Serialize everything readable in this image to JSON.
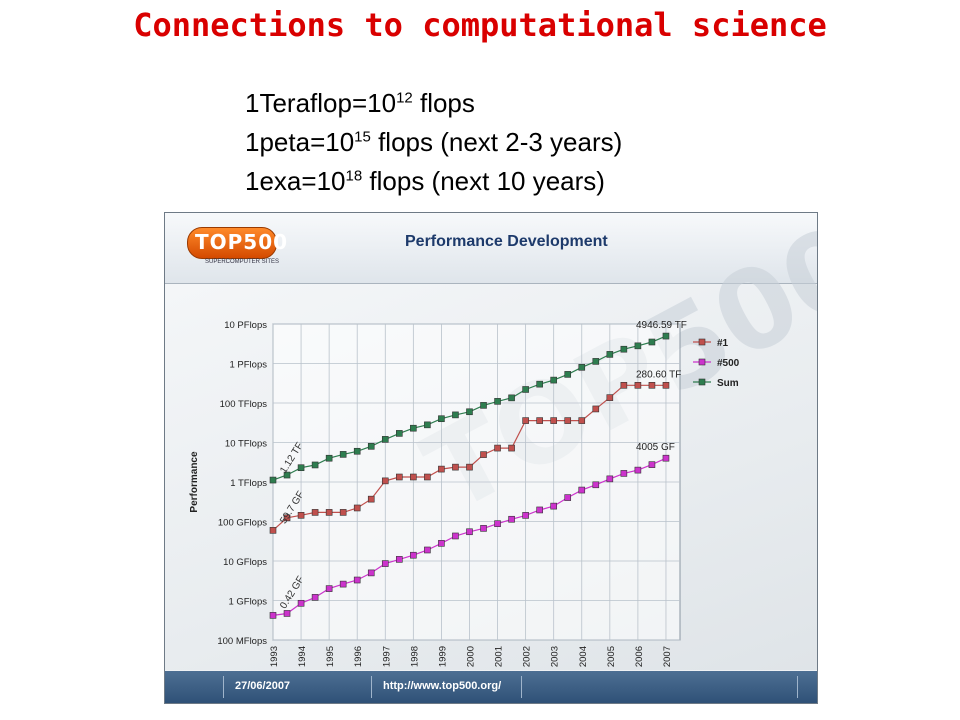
{
  "slide": {
    "title": "Connections to computational science",
    "lines": [
      {
        "pre": "1Teraflop=10",
        "sup": "12",
        "post": " flops"
      },
      {
        "pre": "1peta=10",
        "sup": "15",
        "post": " flops (next 2-3 years)"
      },
      {
        "pre": "1exa=10",
        "sup": "18",
        "post": " flops (next 10 years)"
      }
    ]
  },
  "panel": {
    "logo_text": "TOP500",
    "logo_subtext": "SUPERCOMPUTER SITES",
    "title": "Performance Development",
    "footer_date": "27/06/2007",
    "footer_url": "http://www.top500.org/"
  },
  "chart_data": {
    "type": "line",
    "title": "Performance Development",
    "ylabel": "Performance",
    "xlabel": "",
    "y_scale": "log",
    "y_ticks": [
      "100 MFlops",
      "1 GFlops",
      "10 GFlops",
      "100 GFlops",
      "1 TFlops",
      "10 TFlops",
      "100 TFlops",
      "1 PFlops",
      "10 PFlops"
    ],
    "ylim_gflops": [
      0.1,
      10000000
    ],
    "x_ticks": [
      "1993",
      "1994",
      "1995",
      "1996",
      "1997",
      "1998",
      "1999",
      "2000",
      "2001",
      "2002",
      "2003",
      "2004",
      "2005",
      "2006",
      "2007"
    ],
    "xlim": [
      1993,
      2007.5
    ],
    "grid": true,
    "legend_position": "right",
    "series": [
      {
        "name": "#1",
        "color": "#c0504d",
        "x": [
          1993,
          1993.5,
          1994,
          1994.5,
          1995,
          1995.5,
          1996,
          1996.5,
          1997,
          1997.5,
          1998,
          1998.5,
          1999,
          1999.5,
          2000,
          2000.5,
          2001,
          2001.5,
          2002,
          2002.5,
          2003,
          2003.5,
          2004,
          2004.5,
          2005,
          2005.5,
          2006,
          2006.5,
          2007
        ],
        "y_gflops": [
          59.7,
          124,
          143.4,
          170,
          170,
          170,
          220,
          368,
          1068,
          1338,
          1338,
          1338,
          2121,
          2379,
          2379,
          4938,
          7226,
          7226,
          35860,
          35860,
          35860,
          35860,
          35860,
          70720,
          136800,
          280600,
          280600,
          280600,
          280600
        ],
        "start_label": "59.7 GF",
        "end_label": "280.60 TF"
      },
      {
        "name": "#500",
        "color": "#cc33cc",
        "x": [
          1993,
          1993.5,
          1994,
          1994.5,
          1995,
          1995.5,
          1996,
          1996.5,
          1997,
          1997.5,
          1998,
          1998.5,
          1999,
          1999.5,
          2000,
          2000.5,
          2001,
          2001.5,
          2002,
          2002.5,
          2003,
          2003.5,
          2004,
          2004.5,
          2005,
          2005.5,
          2006,
          2006.5,
          2007
        ],
        "y_gflops": [
          0.42,
          0.47,
          0.85,
          1.2,
          2.0,
          2.6,
          3.3,
          5.0,
          8.6,
          11,
          14,
          19,
          28,
          43,
          55,
          67,
          88,
          114,
          143,
          196,
          245,
          403,
          625,
          850,
          1200,
          1650,
          2000,
          2750,
          4005
        ],
        "start_label": "0.42 GF",
        "end_label": "4005 GF"
      },
      {
        "name": "Sum",
        "color": "#2e7d4f",
        "x": [
          1993,
          1993.5,
          1994,
          1994.5,
          1995,
          1995.5,
          1996,
          1996.5,
          1997,
          1997.5,
          1998,
          1998.5,
          1999,
          1999.5,
          2000,
          2000.5,
          2001,
          2001.5,
          2002,
          2002.5,
          2003,
          2003.5,
          2004,
          2004.5,
          2005,
          2005.5,
          2006,
          2006.5,
          2007
        ],
        "y_gflops": [
          1120,
          1500,
          2300,
          2700,
          4000,
          5000,
          6000,
          8000,
          12000,
          17000,
          23000,
          28000,
          40000,
          50000,
          60000,
          87000,
          110000,
          135000,
          220000,
          300000,
          380000,
          530000,
          800000,
          1130000,
          1700000,
          2300000,
          2800000,
          3500000,
          4946590
        ],
        "start_label": "1.12 TF",
        "end_label": "4946.59 TF"
      }
    ]
  }
}
